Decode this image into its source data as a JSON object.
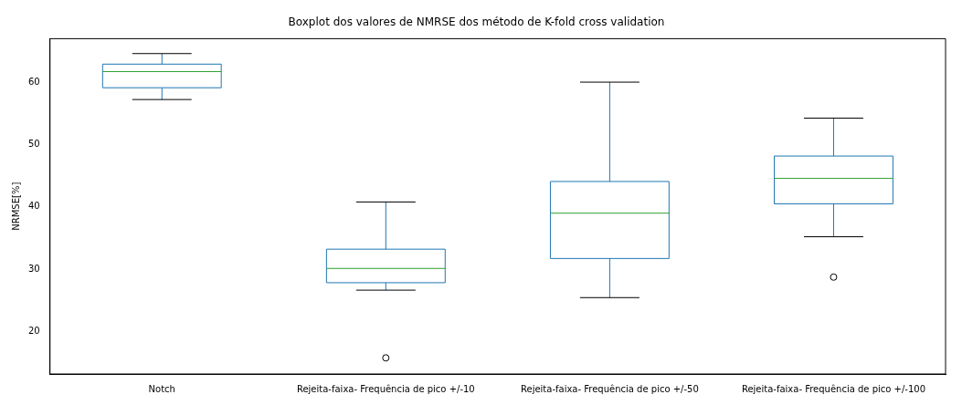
{
  "chart_data": {
    "type": "box",
    "title": "Boxplot dos valores de NMRSE dos método de K-fold cross validation",
    "ylabel": "NRMSE[%]",
    "categories": [
      "Notch",
      "Rejeita-faixa- Frequência de pico +/-10",
      "Rejeita-faixa- Frequência de pico +/-50",
      "Rejeita-faixa- Frequência de pico +/-100"
    ],
    "color": "#1f77b4",
    "boxes": [
      {
        "low": 57.3,
        "q1": 59.2,
        "median": 61.8,
        "q3": 63.0,
        "high": 64.7
      },
      {
        "low": 26.6,
        "q1": 27.8,
        "median": 30.1,
        "q3": 33.2,
        "high": 40.8,
        "outliers": [
          15.7
        ]
      },
      {
        "low": 25.4,
        "q1": 31.7,
        "median": 39.0,
        "q3": 44.1,
        "high": 60.1
      },
      {
        "low": 35.2,
        "q1": 40.5,
        "median": 44.6,
        "q3": 48.2,
        "high": 54.3,
        "outliers": [
          28.7
        ]
      }
    ],
    "ylim": [
      13.1,
      67.1
    ],
    "yticks": [
      20,
      30,
      40,
      50,
      60
    ]
  }
}
